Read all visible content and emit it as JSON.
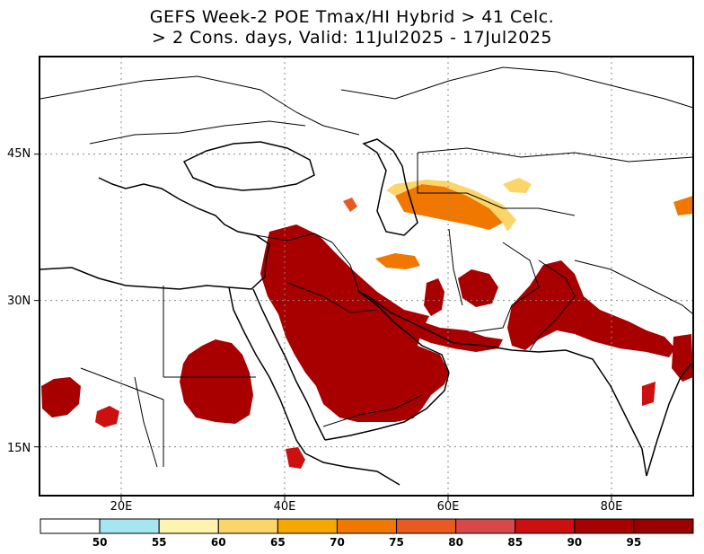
{
  "title": {
    "line1": "GEFS Week-2 POE Tmax/HI Hybrid > 41 Celc.",
    "line2": "> 2 Cons. days, Valid: 11Jul2025 - 17Jul2025"
  },
  "map": {
    "lon_range": [
      10,
      90
    ],
    "lat_range": [
      10,
      55
    ],
    "lat_ticks": [
      {
        "label": "45N",
        "value": 45
      },
      {
        "label": "30N",
        "value": 30
      },
      {
        "label": "15N",
        "value": 15
      }
    ],
    "lon_ticks": [
      {
        "label": "20E",
        "value": 20
      },
      {
        "label": "40E",
        "value": 40
      },
      {
        "label": "60E",
        "value": 60
      },
      {
        "label": "80E",
        "value": 80
      }
    ],
    "grid": "dotted"
  },
  "colorbar": {
    "labels": [
      "50",
      "55",
      "60",
      "65",
      "70",
      "75",
      "80",
      "85",
      "90",
      "95"
    ],
    "colors": [
      "#ffffff",
      "#a6e6f0",
      "#fff3b0",
      "#fbd56a",
      "#f7a800",
      "#f07800",
      "#e85a20",
      "#d84848",
      "#cc1010",
      "#a80000",
      "#9a0000"
    ]
  }
}
